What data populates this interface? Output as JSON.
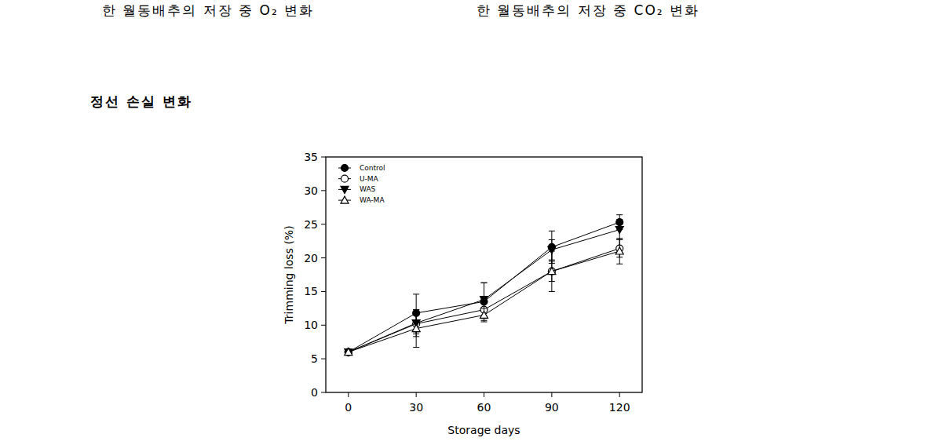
{
  "captions": [
    "한 월동배추의 저장 중 O₂ 변화",
    "한 월동배추의 저장 중 CO₂ 변화"
  ],
  "heading": "정선 손실 변화",
  "chart_data": {
    "type": "line",
    "x_label": "Storage days",
    "y_label": "Trimming loss (%)",
    "x": [
      0,
      30,
      60,
      90,
      120
    ],
    "xlim": [
      -10,
      130
    ],
    "xticks": [
      0,
      30,
      60,
      90,
      120
    ],
    "ylim": [
      0,
      35
    ],
    "yticks": [
      0,
      5,
      10,
      15,
      20,
      25,
      30,
      35
    ],
    "grid": false,
    "legend": "upper left",
    "series": [
      {
        "name": "Control",
        "color": "#000000",
        "marker": "circle",
        "line_style": "solid",
        "values": [
          6.0,
          11.8,
          13.5,
          21.6,
          25.3
        ],
        "errors": [
          0,
          2.8,
          2.8,
          2.4,
          1.1
        ]
      },
      {
        "name": "U-MA",
        "color": "#000000",
        "marker": "circle-open",
        "line_style": "solid",
        "values": [
          6.0,
          10.2,
          12.3,
          18.0,
          21.4
        ],
        "errors": [
          0,
          1.5,
          1.3,
          1.5,
          1.3
        ]
      },
      {
        "name": "WAS",
        "color": "#000000",
        "marker": "triangle-down",
        "line_style": "solid",
        "values": [
          6.0,
          10.3,
          13.8,
          21.2,
          24.2
        ],
        "errors": [
          0,
          2.0,
          2.5,
          1.5,
          1.5
        ]
      },
      {
        "name": "WA-MA",
        "color": "#000000",
        "marker": "triangle-up-open",
        "line_style": "solid",
        "values": [
          6.0,
          9.5,
          11.5,
          18.0,
          21.0
        ],
        "errors": [
          0,
          2.8,
          1.0,
          3.0,
          1.9
        ]
      }
    ]
  }
}
